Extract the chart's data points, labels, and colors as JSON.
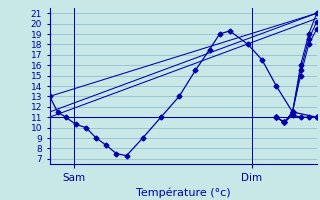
{
  "background_color": "#c8e8e8",
  "grid_color": "#88b8c8",
  "line_color": "#0000aa",
  "xlabel": "Température (°c)",
  "ylim": [
    6.5,
    21.5
  ],
  "yticks": [
    7,
    8,
    9,
    10,
    11,
    12,
    13,
    14,
    15,
    16,
    17,
    18,
    19,
    20,
    21
  ],
  "sam_x": 24,
  "dim_x": 200,
  "xlim_data": [
    0,
    264
  ],
  "main_x": [
    0,
    8,
    16,
    26,
    36,
    46,
    56,
    66,
    76,
    92,
    110,
    128,
    144,
    158,
    168,
    178,
    196,
    210,
    224,
    240,
    264
  ],
  "main_y": [
    13.0,
    11.5,
    11.0,
    10.3,
    10.0,
    9.0,
    8.3,
    7.5,
    7.3,
    9.0,
    11.0,
    13.0,
    15.5,
    17.5,
    19.0,
    19.3,
    18.0,
    16.5,
    14.0,
    11.5,
    11.0
  ],
  "main_x2": [
    224,
    232,
    240,
    248,
    256,
    264
  ],
  "main_y2": [
    11.0,
    10.5,
    11.2,
    11.0,
    11.0,
    11.0
  ],
  "straight_lines": [
    {
      "x": [
        0,
        264
      ],
      "y": [
        11.0,
        11.0
      ]
    },
    {
      "x": [
        0,
        264
      ],
      "y": [
        11.0,
        20.5
      ]
    },
    {
      "x": [
        0,
        264
      ],
      "y": [
        11.5,
        21.0
      ]
    },
    {
      "x": [
        0,
        264
      ],
      "y": [
        13.0,
        21.0
      ]
    }
  ],
  "right_curve_x": [
    224,
    232,
    240,
    248,
    256,
    264
  ],
  "right_curves_y": [
    [
      11.0,
      10.5,
      11.5,
      15.0,
      18.0,
      19.5
    ],
    [
      11.0,
      10.5,
      11.5,
      15.5,
      18.5,
      20.2
    ],
    [
      11.0,
      10.5,
      11.5,
      16.0,
      19.0,
      21.0
    ]
  ]
}
